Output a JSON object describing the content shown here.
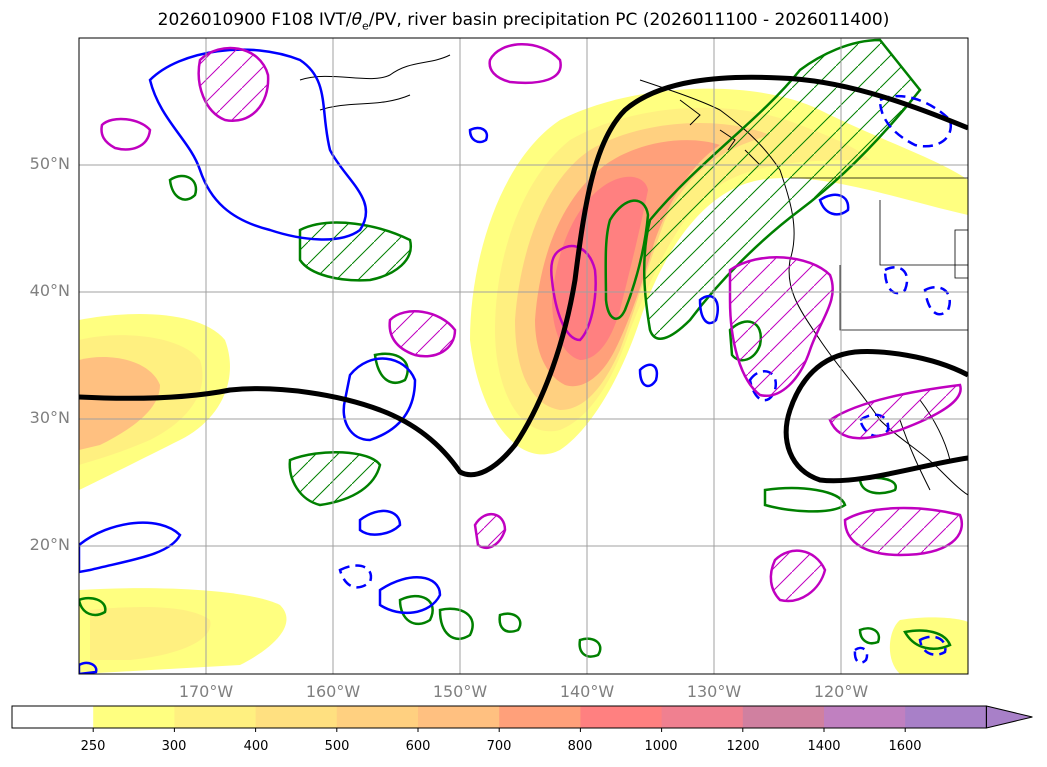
{
  "title_prefix": "2026010900 F108 IVT/",
  "title_theta": "θ",
  "title_sub": "e",
  "title_suffix": "/PV, river basin precipitation PC (2026011100 - 2026011400)",
  "lat_labels": [
    "50°N",
    "40°N",
    "30°N",
    "20°N"
  ],
  "lon_labels": [
    "170°W",
    "160°W",
    "150°W",
    "140°W",
    "130°W",
    "120°W"
  ],
  "colorbar": {
    "ticks": [
      "250",
      "300",
      "400",
      "500",
      "600",
      "700",
      "800",
      "1000",
      "1200",
      "1400",
      "1600"
    ],
    "colors": [
      "#ffffff",
      "#ffff80",
      "#fff080",
      "#ffe080",
      "#ffd080",
      "#ffc080",
      "#ffa07a",
      "#ff8080",
      "#f08090",
      "#d080a0",
      "#c080c0",
      "#a880c8"
    ]
  },
  "colors": {
    "contour_black": "#000000",
    "contour_green": "#008000",
    "contour_blue": "#0000ff",
    "contour_magenta": "#c000c0"
  }
}
